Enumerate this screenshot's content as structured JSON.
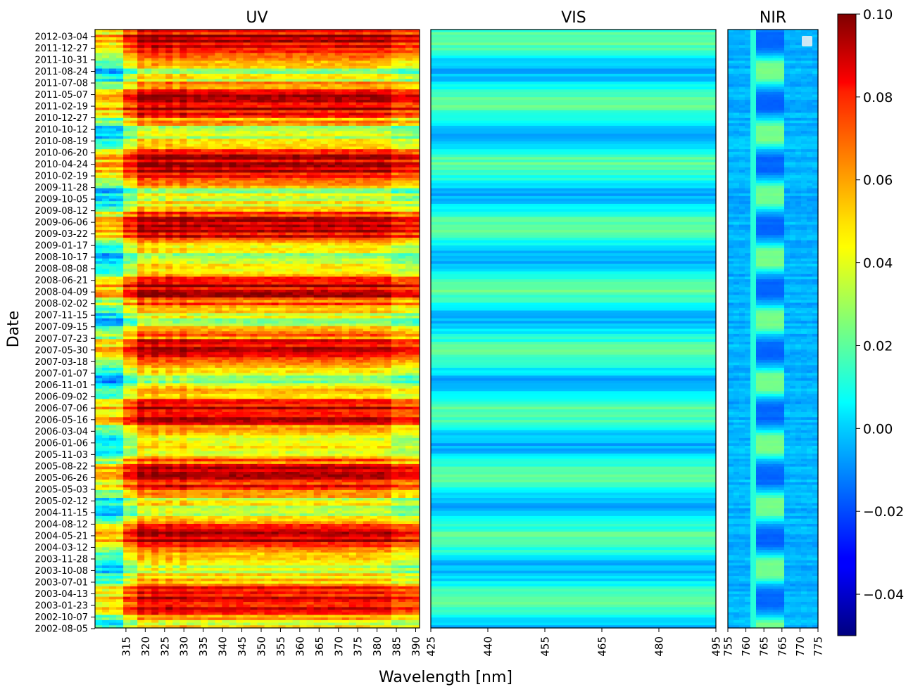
{
  "chart_data": {
    "type": "heatmap",
    "xlabel": "Wavelength [nm]",
    "ylabel": "Date",
    "colormap": "jet",
    "color_range": [
      -0.05,
      0.1
    ],
    "colorbar_ticks": [
      0.1,
      0.08,
      0.06,
      0.04,
      0.02,
      0.0,
      -0.02,
      -0.04
    ],
    "colorbar_tick_labels": [
      "0.10",
      "0.08",
      "0.06",
      "0.04",
      "0.02",
      "0.00",
      "−0.02",
      "−0.04"
    ],
    "date_range": [
      "2002-08-05",
      "2012-03-04"
    ],
    "date_ticks": [
      "2012-03-04",
      "2011-12-27",
      "2011-10-31",
      "2011-08-24",
      "2011-07-08",
      "2011-05-07",
      "2011-02-19",
      "2010-12-27",
      "2010-10-12",
      "2010-08-19",
      "2010-06-20",
      "2010-04-24",
      "2010-02-19",
      "2009-11-28",
      "2009-10-05",
      "2009-08-12",
      "2009-06-06",
      "2009-03-22",
      "2009-01-17",
      "2008-10-17",
      "2008-08-08",
      "2008-06-21",
      "2008-04-09",
      "2008-02-02",
      "2007-11-15",
      "2007-09-15",
      "2007-07-23",
      "2007-05-30",
      "2007-03-18",
      "2007-01-07",
      "2006-11-01",
      "2006-09-02",
      "2006-07-06",
      "2006-05-16",
      "2006-03-04",
      "2006-01-06",
      "2005-11-03",
      "2005-08-22",
      "2005-06-26",
      "2005-05-03",
      "2005-02-12",
      "2004-11-15",
      "2004-08-12",
      "2004-05-21",
      "2004-03-12",
      "2003-11-28",
      "2003-10-08",
      "2003-07-01",
      "2003-04-13",
      "2003-01-23",
      "2002-10-07",
      "2002-08-05"
    ],
    "panels": [
      {
        "title": "UV",
        "xlim": [
          307,
          391
        ],
        "xticks": [
          "315",
          "320",
          "325",
          "330",
          "335",
          "340",
          "345",
          "350",
          "355",
          "360",
          "365",
          "370",
          "375",
          "380",
          "385",
          "390"
        ],
        "description_values": {
          "summer_peak": 0.09,
          "winter_low": 0.035
        }
      },
      {
        "title": "VIS",
        "xlim": [
          425,
          495
        ],
        "xticks": [
          "425",
          "440",
          "455",
          "465",
          "480",
          "495"
        ],
        "description_values": {
          "summer_peak": 0.02,
          "winter_low": -0.005
        }
      },
      {
        "title": "NIR",
        "xlim": [
          755,
          775
        ],
        "xticks": [
          "755",
          "760",
          "765",
          "765",
          "770",
          "775"
        ],
        "description_values": {
          "background": -0.005,
          "band_summer": -0.015,
          "band_winter": 0.025
        }
      }
    ],
    "grid": false,
    "legend": "none"
  }
}
